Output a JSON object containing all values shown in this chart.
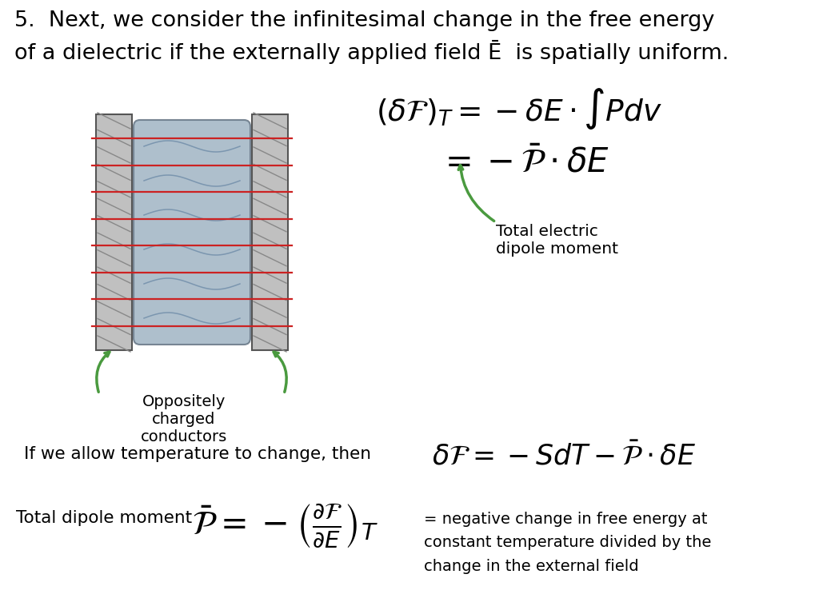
{
  "title_line1": "5.  Next, we consider the infinitesimal change in the free energy",
  "title_line2": "of a dielectric if the externally applied field Ē  is spatially uniform.",
  "bg_color": "#ffffff",
  "text_color": "#000000",
  "green_color": "#4a9a3f",
  "label_opp": "Oppositely\ncharged\nconductors",
  "label_total_elec": "Total electric\ndipole moment",
  "label_temp": "If we allow temperature to change, then",
  "label_total_dip": "Total dipole moment",
  "label_rhs": "= negative change in free energy at\nconstant temperature divided by the\nchange in the external field",
  "figsize": [
    10.24,
    7.68
  ],
  "dpi": 100
}
